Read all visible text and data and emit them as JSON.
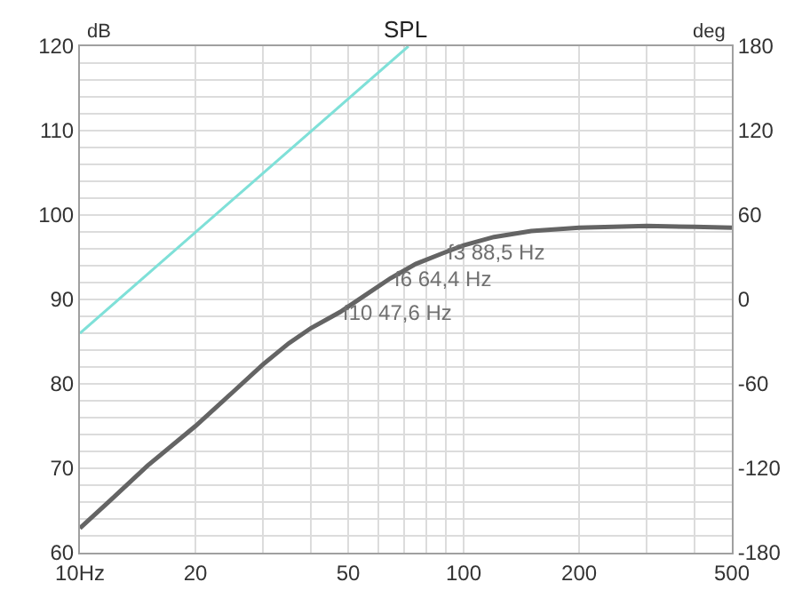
{
  "chart_data": {
    "type": "line",
    "title": "SPL",
    "ylabel": "dB",
    "y2label": "deg",
    "log": "x",
    "grid": true,
    "marker": "none",
    "line_style": "solid",
    "xlim": [
      10,
      500
    ],
    "xticks": [
      {
        "value": 10,
        "label": "10Hz"
      },
      20,
      {
        "value": 30,
        "label": null
      },
      {
        "value": 40,
        "label": null
      },
      50,
      {
        "value": 60,
        "label": null
      },
      {
        "value": 70,
        "label": null
      },
      {
        "value": 80,
        "label": null
      },
      {
        "value": 90,
        "label": null
      },
      100,
      200,
      {
        "value": 300,
        "label": null
      },
      {
        "value": 400,
        "label": null
      },
      500
    ],
    "ylim": [
      60,
      120
    ],
    "yticks": [
      60,
      {
        "value": 62,
        "label": null
      },
      {
        "value": 64,
        "label": null
      },
      {
        "value": 66,
        "label": null
      },
      {
        "value": 68,
        "label": null
      },
      70,
      {
        "value": 72,
        "label": null
      },
      {
        "value": 74,
        "label": null
      },
      {
        "value": 76,
        "label": null
      },
      {
        "value": 78,
        "label": null
      },
      80,
      {
        "value": 82,
        "label": null
      },
      {
        "value": 84,
        "label": null
      },
      {
        "value": 86,
        "label": null
      },
      {
        "value": 88,
        "label": null
      },
      90,
      {
        "value": 92,
        "label": null
      },
      {
        "value": 94,
        "label": null
      },
      {
        "value": 96,
        "label": null
      },
      {
        "value": 98,
        "label": null
      },
      100,
      {
        "value": 102,
        "label": null
      },
      {
        "value": 104,
        "label": null
      },
      {
        "value": 106,
        "label": null
      },
      {
        "value": 108,
        "label": null
      },
      110,
      {
        "value": 112,
        "label": null
      },
      {
        "value": 114,
        "label": null
      },
      {
        "value": 116,
        "label": null
      },
      {
        "value": 118,
        "label": null
      },
      120
    ],
    "y2lim": [
      -180,
      180
    ],
    "y2ticks": [
      -180,
      -120,
      -60,
      0,
      60,
      120,
      180
    ],
    "series": [
      {
        "color": "#646464",
        "x": [
          10,
          12,
          15,
          20,
          25,
          30,
          35,
          40,
          47.6,
          55,
          64.4,
          75,
          88.5,
          100,
          120,
          150,
          200,
          300,
          400,
          500
        ],
        "values": [
          62.9,
          66.2,
          70.3,
          75.0,
          79.0,
          82.3,
          84.8,
          86.6,
          88.5,
          90.4,
          92.5,
          94.2,
          95.5,
          96.4,
          97.4,
          98.1,
          98.5,
          98.7,
          98.6,
          98.5
        ]
      },
      {
        "color": "#7fe0d8",
        "axis": "y2",
        "x": [
          10,
          71.8
        ],
        "values": [
          -24,
          180
        ]
      }
    ],
    "annotations": [
      {
        "text": "f3 88,5 Hz",
        "x": 88.5,
        "y": 95.5
      },
      {
        "text": "f6 64,4 Hz",
        "x": 64.4,
        "y": 92.5
      },
      {
        "text": "f10 47,6 Hz",
        "x": 47.6,
        "y": 88.5
      }
    ]
  }
}
